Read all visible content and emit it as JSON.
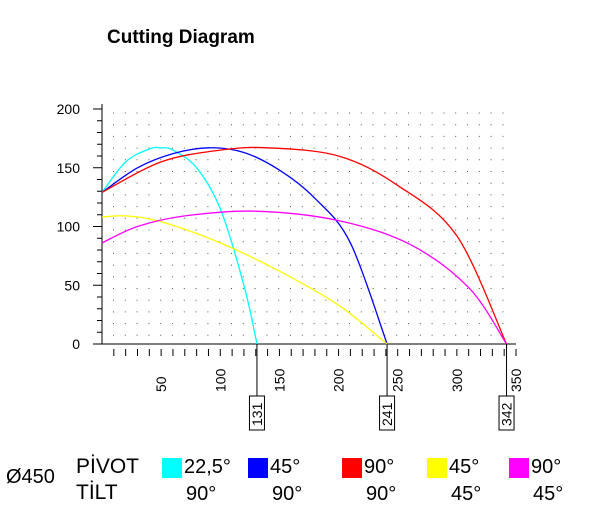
{
  "chart_data": {
    "type": "line",
    "title": "Cutting Diagram",
    "xlim": [
      0,
      350
    ],
    "ylim": [
      0,
      200
    ],
    "x_ticks": [
      50,
      100,
      150,
      200,
      250,
      300,
      350
    ],
    "y_ticks": [
      0,
      50,
      100,
      150,
      200
    ],
    "grid": true,
    "markers": [
      "131",
      "241",
      "342"
    ],
    "series": [
      {
        "color": "#00ffff",
        "pivot": "22,5°",
        "tilt": "90°",
        "x": [
          0,
          20,
          40,
          50,
          60,
          80,
          100,
          120,
          131
        ],
        "y": [
          129,
          155,
          166,
          167,
          165,
          150,
          115,
          50,
          0
        ]
      },
      {
        "color": "#0000ff",
        "pivot": "45°",
        "tilt": "90°",
        "x": [
          0,
          30,
          60,
          90,
          120,
          150,
          180,
          210,
          241
        ],
        "y": [
          129,
          150,
          162,
          167,
          163,
          148,
          124,
          86,
          0
        ]
      },
      {
        "color": "#ff0000",
        "pivot": "90°",
        "tilt": "90°",
        "x": [
          0,
          50,
          100,
          140,
          200,
          250,
          300,
          342
        ],
        "y": [
          129,
          155,
          165,
          167,
          160,
          135,
          92,
          0
        ]
      },
      {
        "color": "#ffff00",
        "pivot": "45°",
        "tilt": "45°",
        "x": [
          0,
          20,
          50,
          100,
          150,
          200,
          241
        ],
        "y": [
          108,
          109,
          104,
          86,
          62,
          33,
          0
        ]
      },
      {
        "color": "#ff00ff",
        "pivot": "90°",
        "tilt": "45°",
        "x": [
          0,
          30,
          70,
          130,
          200,
          260,
          310,
          342
        ],
        "y": [
          86,
          100,
          109,
          113,
          105,
          85,
          48,
          0
        ]
      }
    ]
  },
  "legend": {
    "diameter": "Ø450",
    "pivot_label": "PİVOT",
    "tilt_label": "TİLT"
  }
}
